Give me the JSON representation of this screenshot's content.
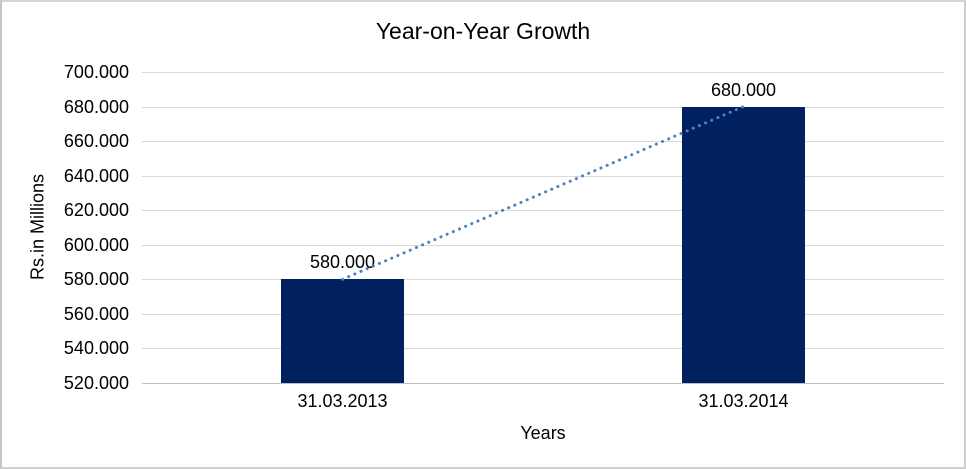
{
  "window": {
    "background": "#ffffff",
    "border_color": "#cfcfcf"
  },
  "chart_data": {
    "type": "bar",
    "title": "Year-on-Year Growth",
    "categories": [
      "31.03.2013",
      "31.03.2014"
    ],
    "values": [
      580,
      680
    ],
    "value_labels": [
      "580.000",
      "680.000"
    ],
    "xlabel": "Years",
    "ylabel": "Rs.in Millions",
    "ylim": [
      520,
      700
    ],
    "ytick_step": 20,
    "ytick_labels": [
      "700.000",
      "680.000",
      "660.000",
      "640.000",
      "620.000",
      "600.000",
      "580.000",
      "560.000",
      "540.000",
      "520.000"
    ],
    "bar_color": "#002060",
    "gridline_color": "#d9d9d9",
    "axis_line_color": "#bfbfbf",
    "grid": "horizontal",
    "legend": "none",
    "trendline": {
      "type": "linear",
      "style": "dotted",
      "color": "#4e81bd",
      "x": [
        "31.03.2013",
        "31.03.2014"
      ],
      "y": [
        580,
        680
      ]
    }
  }
}
